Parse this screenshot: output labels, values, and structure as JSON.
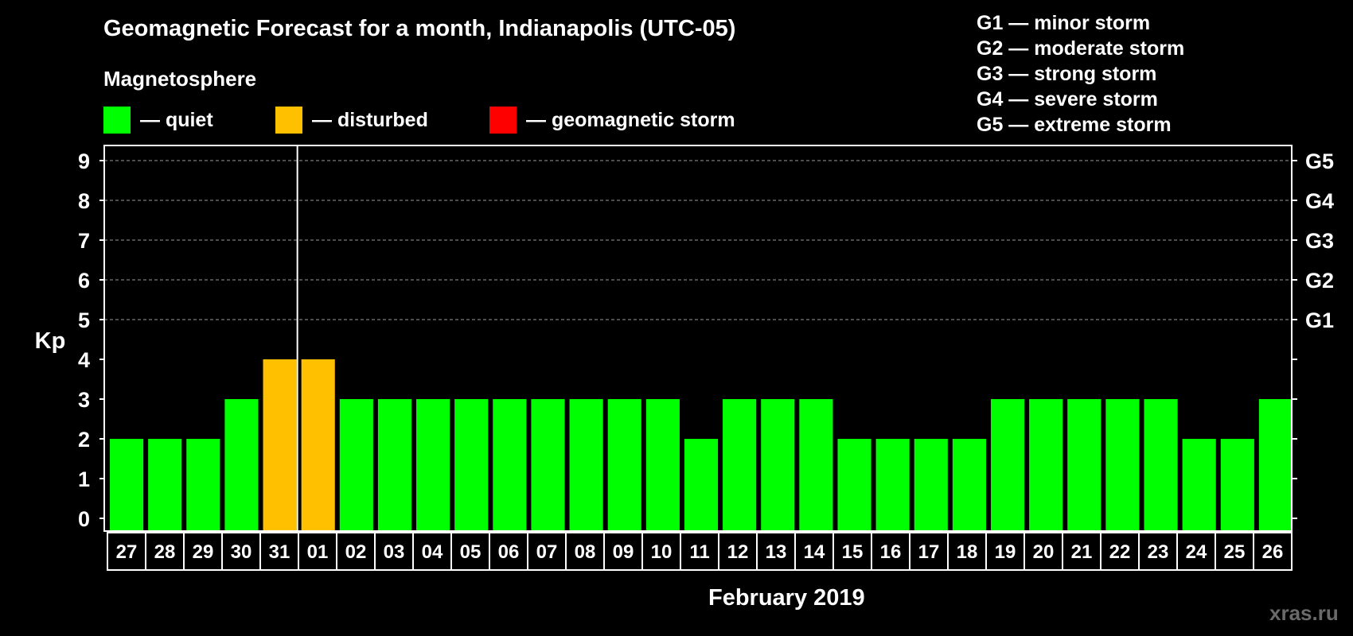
{
  "chart_data": {
    "type": "bar",
    "title": "Geomagnetic Forecast for a month, Indianapolis (UTC-05)",
    "subtitle": "Magnetosphere",
    "xlabel": "February 2019",
    "ylabel": "Kp",
    "ylim": [
      0,
      9
    ],
    "yticks": [
      "0",
      "1",
      "2",
      "3",
      "4",
      "5",
      "6",
      "7",
      "8",
      "9"
    ],
    "right_ticks": [
      {
        "kp": 5,
        "label": "G1"
      },
      {
        "kp": 6,
        "label": "G2"
      },
      {
        "kp": 7,
        "label": "G3"
      },
      {
        "kp": 8,
        "label": "G4"
      },
      {
        "kp": 9,
        "label": "G5"
      }
    ],
    "grid": true,
    "categories": [
      "27",
      "28",
      "29",
      "30",
      "31",
      "01",
      "02",
      "03",
      "04",
      "05",
      "06",
      "07",
      "08",
      "09",
      "10",
      "11",
      "12",
      "13",
      "14",
      "15",
      "16",
      "17",
      "18",
      "19",
      "20",
      "21",
      "22",
      "23",
      "24",
      "25",
      "26"
    ],
    "values": [
      2,
      2,
      2,
      3,
      4,
      4,
      3,
      3,
      3,
      3,
      3,
      3,
      3,
      3,
      3,
      2,
      3,
      3,
      3,
      2,
      2,
      2,
      2,
      3,
      3,
      3,
      3,
      3,
      2,
      2,
      3
    ],
    "month_boundary_after": "31",
    "legend": [
      {
        "label": "— quiet",
        "color": "#00ff00"
      },
      {
        "label": "— disturbed",
        "color": "#ffc000"
      },
      {
        "label": "— geomagnetic storm",
        "color": "#ff0000"
      }
    ],
    "storm_scale": [
      "G1 — minor storm",
      "G2 — moderate storm",
      "G3 — strong storm",
      "G4 — severe storm",
      "G5 — extreme storm"
    ]
  },
  "colors": {
    "quiet": "#00ff00",
    "disturbed": "#ffc000",
    "storm": "#ff0000",
    "axis": "#ffffff",
    "grid": "#9a9a9a",
    "watermark": "#6a6a6a"
  },
  "watermark": "xras.ru"
}
